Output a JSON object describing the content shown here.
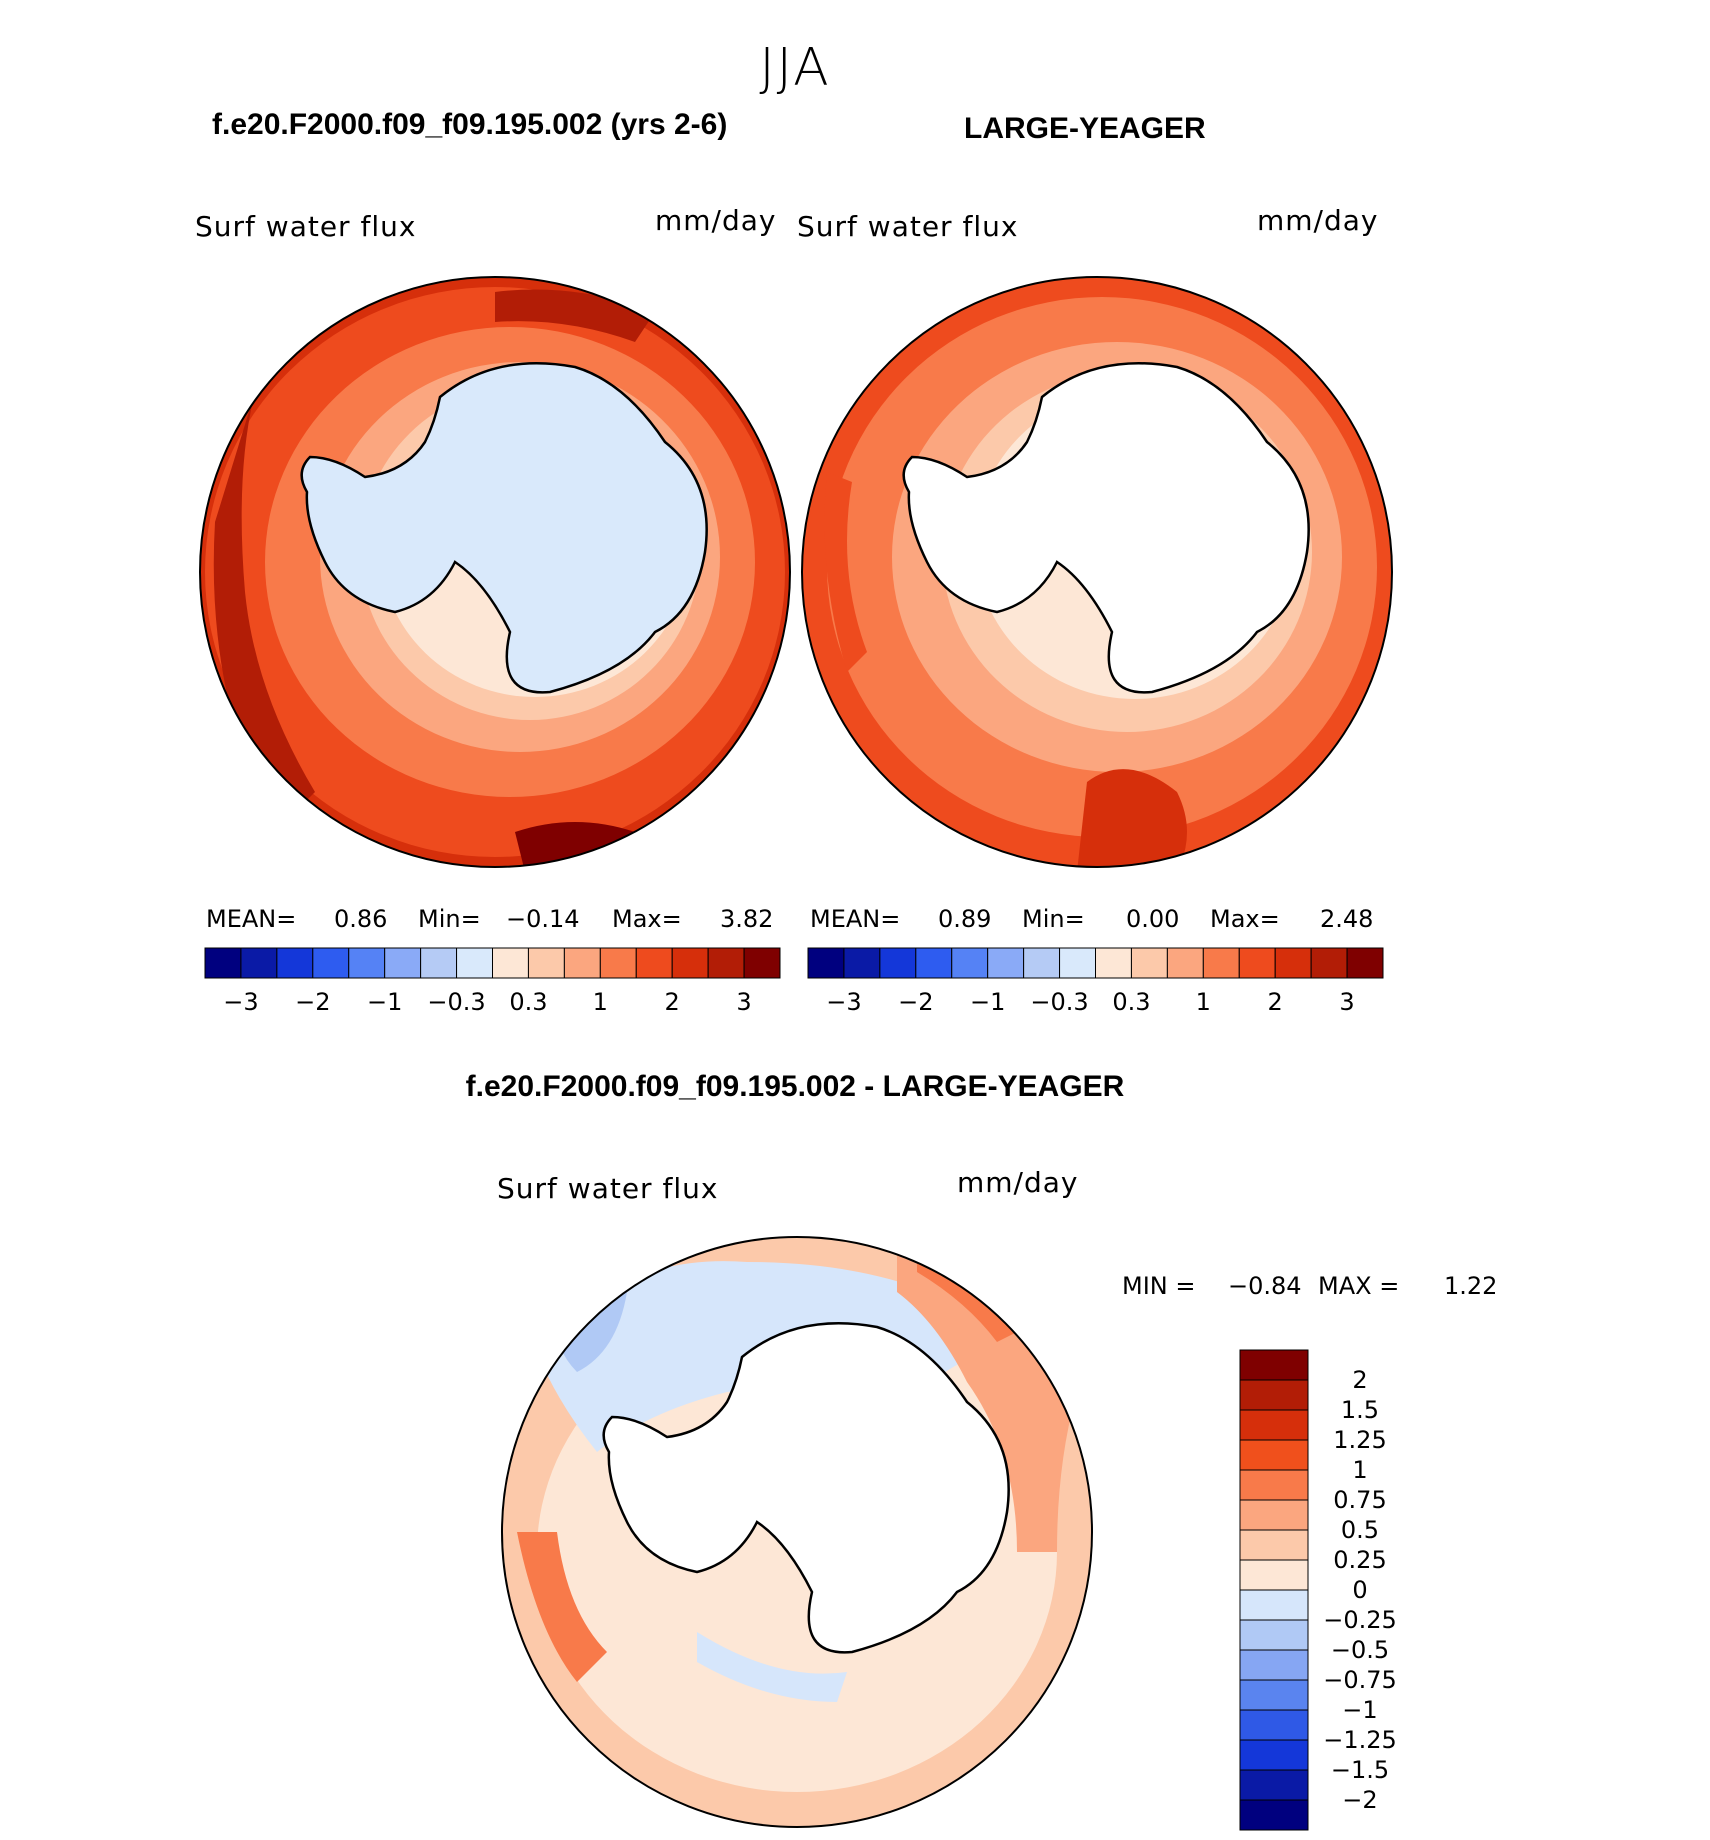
{
  "season": "JJA",
  "panels": [
    {
      "id": "test",
      "case_title": "f.e20.F2000.f09_f09.195.002 (yrs 2-6)",
      "variable": "Surf water flux",
      "units": "mm/day",
      "stats": {
        "mean_label": "MEAN=",
        "mean": "0.86",
        "min_label": "Min=",
        "min": "−0.14",
        "max_label": "Max=",
        "max": "3.82"
      },
      "colorbar_ticks": [
        "−3",
        "−2",
        "−1",
        "−0.3",
        "0.3",
        "1",
        "2",
        "3"
      ]
    },
    {
      "id": "control",
      "case_title": "LARGE-YEAGER",
      "variable": "Surf water flux",
      "units": "mm/day",
      "stats": {
        "mean_label": "MEAN=",
        "mean": "0.89",
        "min_label": "Min=",
        "min": "0.00",
        "max_label": "Max=",
        "max": "2.48"
      },
      "colorbar_ticks": [
        "−3",
        "−2",
        "−1",
        "−0.3",
        "0.3",
        "1",
        "2",
        "3"
      ]
    },
    {
      "id": "difference",
      "case_title": "f.e20.F2000.f09_f09.195.002 - LARGE-YEAGER",
      "variable": "Surf water flux",
      "units": "mm/day",
      "stats": {
        "min_label": "MIN =",
        "min": "−0.84",
        "max_label": "MAX =",
        "max": "1.22"
      },
      "colorbar_ticks": [
        "2",
        "1.5",
        "1.25",
        "1",
        "0.75",
        "0.5",
        "0.25",
        "0",
        "−0.25",
        "−0.5",
        "−0.75",
        "−1",
        "−1.25",
        "−1.5",
        "−2"
      ]
    }
  ],
  "colors": {
    "main_scale": [
      "#00007f",
      "#0a1aa6",
      "#1437d9",
      "#2e5cf0",
      "#5582f5",
      "#8aaaf7",
      "#b5cbf5",
      "#d9e9fb",
      "#fde7d6",
      "#fcc9aa",
      "#fba67f",
      "#f87a4a",
      "#ee4b1e",
      "#d62f0b",
      "#b21d06",
      "#7f0000"
    ],
    "diff_scale": [
      "#7f0000",
      "#b21d06",
      "#d62f0b",
      "#f0501c",
      "#f87a4a",
      "#fba67f",
      "#fcc9aa",
      "#fde7d6",
      "#d6e6fb",
      "#b0c9f5",
      "#86a6f3",
      "#5a84ef",
      "#2f59e6",
      "#1437d9",
      "#0a1aa6",
      "#00007f"
    ],
    "land": "#ffffff",
    "coast": "#000000"
  }
}
